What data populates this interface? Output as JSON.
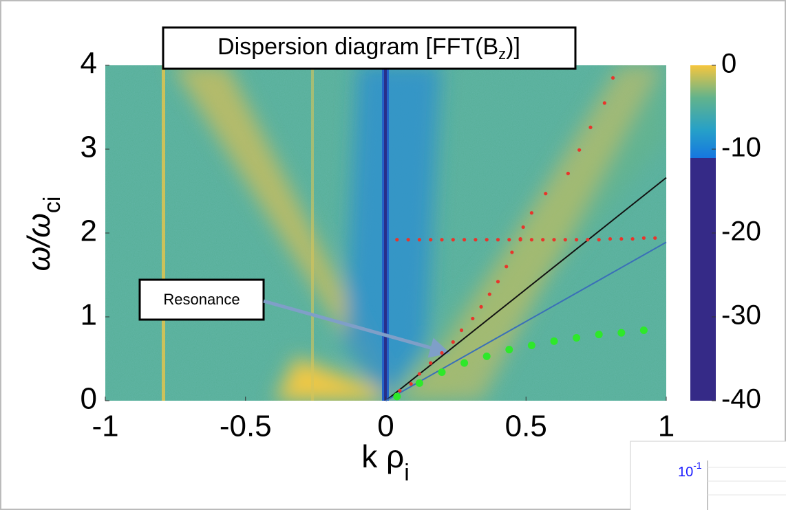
{
  "chart_data": {
    "type": "scatter",
    "title_parts": [
      "Dispersion diagram [FFT(B",
      "z",
      ")]"
    ],
    "x_label_parts": [
      "k ρ",
      "i"
    ],
    "y_label_parts": [
      "ω/ω",
      "ci"
    ],
    "annotation": "Resonance",
    "xlim": [
      -1,
      1
    ],
    "xticks": [
      -1,
      -0.5,
      0,
      0.5,
      1
    ],
    "ylim": [
      0,
      4
    ],
    "yticks": [
      0,
      1,
      2,
      3,
      4
    ],
    "clim": [
      -40,
      0
    ],
    "cticks": [
      0,
      -10,
      -20,
      -30,
      -40
    ],
    "series": [
      {
        "type": "scatter",
        "color": "#e8352b",
        "size": 2.6,
        "x": [
          0.05,
          0.09,
          0.12,
          0.16,
          0.2,
          0.24,
          0.27,
          0.31,
          0.34,
          0.37,
          0.4,
          0.43,
          0.45,
          0.48,
          0.49,
          0.52,
          0.57,
          0.65,
          0.69,
          0.73,
          0.78,
          0.81
        ],
        "values": [
          0.12,
          0.2,
          0.32,
          0.45,
          0.57,
          0.7,
          0.84,
          0.98,
          1.12,
          1.27,
          1.42,
          1.6,
          1.77,
          1.93,
          2.07,
          2.24,
          2.47,
          2.71,
          2.99,
          3.26,
          3.55,
          3.85
        ]
      },
      {
        "type": "scatter",
        "color": "#e8352b",
        "size": 2.6,
        "x": [
          0.04,
          0.08,
          0.12,
          0.16,
          0.2,
          0.24,
          0.28,
          0.32,
          0.36,
          0.4,
          0.44,
          0.48,
          0.52,
          0.56,
          0.6,
          0.64,
          0.68,
          0.72,
          0.76,
          0.8,
          0.84,
          0.88,
          0.92,
          0.96
        ],
        "values": [
          1.92,
          1.92,
          1.92,
          1.92,
          1.92,
          1.92,
          1.92,
          1.92,
          1.92,
          1.92,
          1.92,
          1.92,
          1.92,
          1.92,
          1.92,
          1.92,
          1.92,
          1.92,
          1.92,
          1.93,
          1.93,
          1.93,
          1.94,
          1.94
        ]
      },
      {
        "type": "scatter",
        "color": "#2ee82a",
        "size": 5.5,
        "x": [
          0.04,
          0.12,
          0.2,
          0.28,
          0.36,
          0.44,
          0.52,
          0.6,
          0.68,
          0.76,
          0.84,
          0.92
        ],
        "values": [
          0.05,
          0.21,
          0.34,
          0.45,
          0.53,
          0.61,
          0.66,
          0.71,
          0.75,
          0.79,
          0.81,
          0.84
        ]
      },
      {
        "type": "line",
        "color": "#111111",
        "x": [
          0,
          1
        ],
        "values": [
          0,
          2.66
        ]
      },
      {
        "type": "line",
        "color": "#3a6fb8",
        "x": [
          0,
          1
        ],
        "values": [
          0,
          1.89
        ]
      }
    ],
    "inset_label_parts": [
      "10",
      "-1"
    ]
  }
}
